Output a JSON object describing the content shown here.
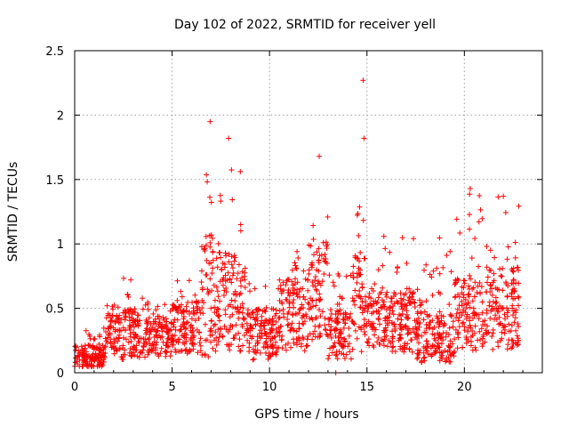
{
  "chart_data": {
    "type": "scatter",
    "title": "Day 102 of 2022, SRMTID for receiver yell",
    "xlabel": "GPS time / hours",
    "ylabel": "SRMTID / TECUs",
    "xlim": [
      0,
      24
    ],
    "ylim": [
      0,
      2.5
    ],
    "x_ticks": [
      "0",
      "5",
      "10",
      "15",
      "20"
    ],
    "y_ticks": [
      "0",
      "0.5",
      "1",
      "1.5",
      "2",
      "2.5"
    ],
    "x_tick_values": [
      0,
      5,
      10,
      15,
      20
    ],
    "y_tick_values": [
      0,
      0.5,
      1,
      1.5,
      2,
      2.5
    ],
    "grid": true,
    "marker": "plus",
    "color": "#ff0000",
    "envelope": [
      {
        "x0": 0.0,
        "x1": 1.6,
        "base": 0.12,
        "spread": 0.12,
        "hi": 0.35
      },
      {
        "x0": 1.6,
        "x1": 2.3,
        "base": 0.3,
        "spread": 0.2,
        "hi": 0.55
      },
      {
        "x0": 2.3,
        "x1": 3.5,
        "base": 0.3,
        "spread": 0.25,
        "hi": 0.8
      },
      {
        "x0": 3.5,
        "x1": 5.0,
        "base": 0.28,
        "spread": 0.2,
        "hi": 0.55
      },
      {
        "x0": 5.0,
        "x1": 6.5,
        "base": 0.35,
        "spread": 0.25,
        "hi": 0.75
      },
      {
        "x0": 6.5,
        "x1": 7.2,
        "base": 0.6,
        "spread": 0.6,
        "hi": 1.95
      },
      {
        "x0": 7.2,
        "x1": 8.8,
        "base": 0.55,
        "spread": 0.5,
        "hi": 1.6
      },
      {
        "x0": 8.8,
        "x1": 10.5,
        "base": 0.3,
        "spread": 0.25,
        "hi": 0.7
      },
      {
        "x0": 10.5,
        "x1": 12.0,
        "base": 0.45,
        "spread": 0.35,
        "hi": 0.95
      },
      {
        "x0": 12.0,
        "x1": 13.0,
        "base": 0.65,
        "spread": 0.5,
        "hi": 1.68
      },
      {
        "x0": 13.0,
        "x1": 14.2,
        "base": 0.3,
        "spread": 0.25,
        "hi": 0.8
      },
      {
        "x0": 14.2,
        "x1": 14.9,
        "base": 0.55,
        "spread": 0.5,
        "hi": 1.3
      },
      {
        "x0": 14.9,
        "x1": 17.5,
        "base": 0.4,
        "spread": 0.3,
        "hi": 1.1
      },
      {
        "x0": 17.5,
        "x1": 19.5,
        "base": 0.28,
        "spread": 0.25,
        "hi": 1.05
      },
      {
        "x0": 19.5,
        "x1": 21.0,
        "base": 0.45,
        "spread": 0.35,
        "hi": 1.43
      },
      {
        "x0": 21.0,
        "x1": 22.8,
        "base": 0.5,
        "spread": 0.4,
        "hi": 1.37
      }
    ],
    "outliers": [
      {
        "x": 14.8,
        "y": 2.27
      },
      {
        "x": 14.85,
        "y": 1.82
      },
      {
        "x": 7.9,
        "y": 1.82
      },
      {
        "x": 6.95,
        "y": 1.95
      },
      {
        "x": 12.55,
        "y": 1.68
      },
      {
        "x": 20.3,
        "y": 1.43
      },
      {
        "x": 22.0,
        "y": 1.37
      },
      {
        "x": 13.4,
        "y": 0.0
      }
    ]
  }
}
